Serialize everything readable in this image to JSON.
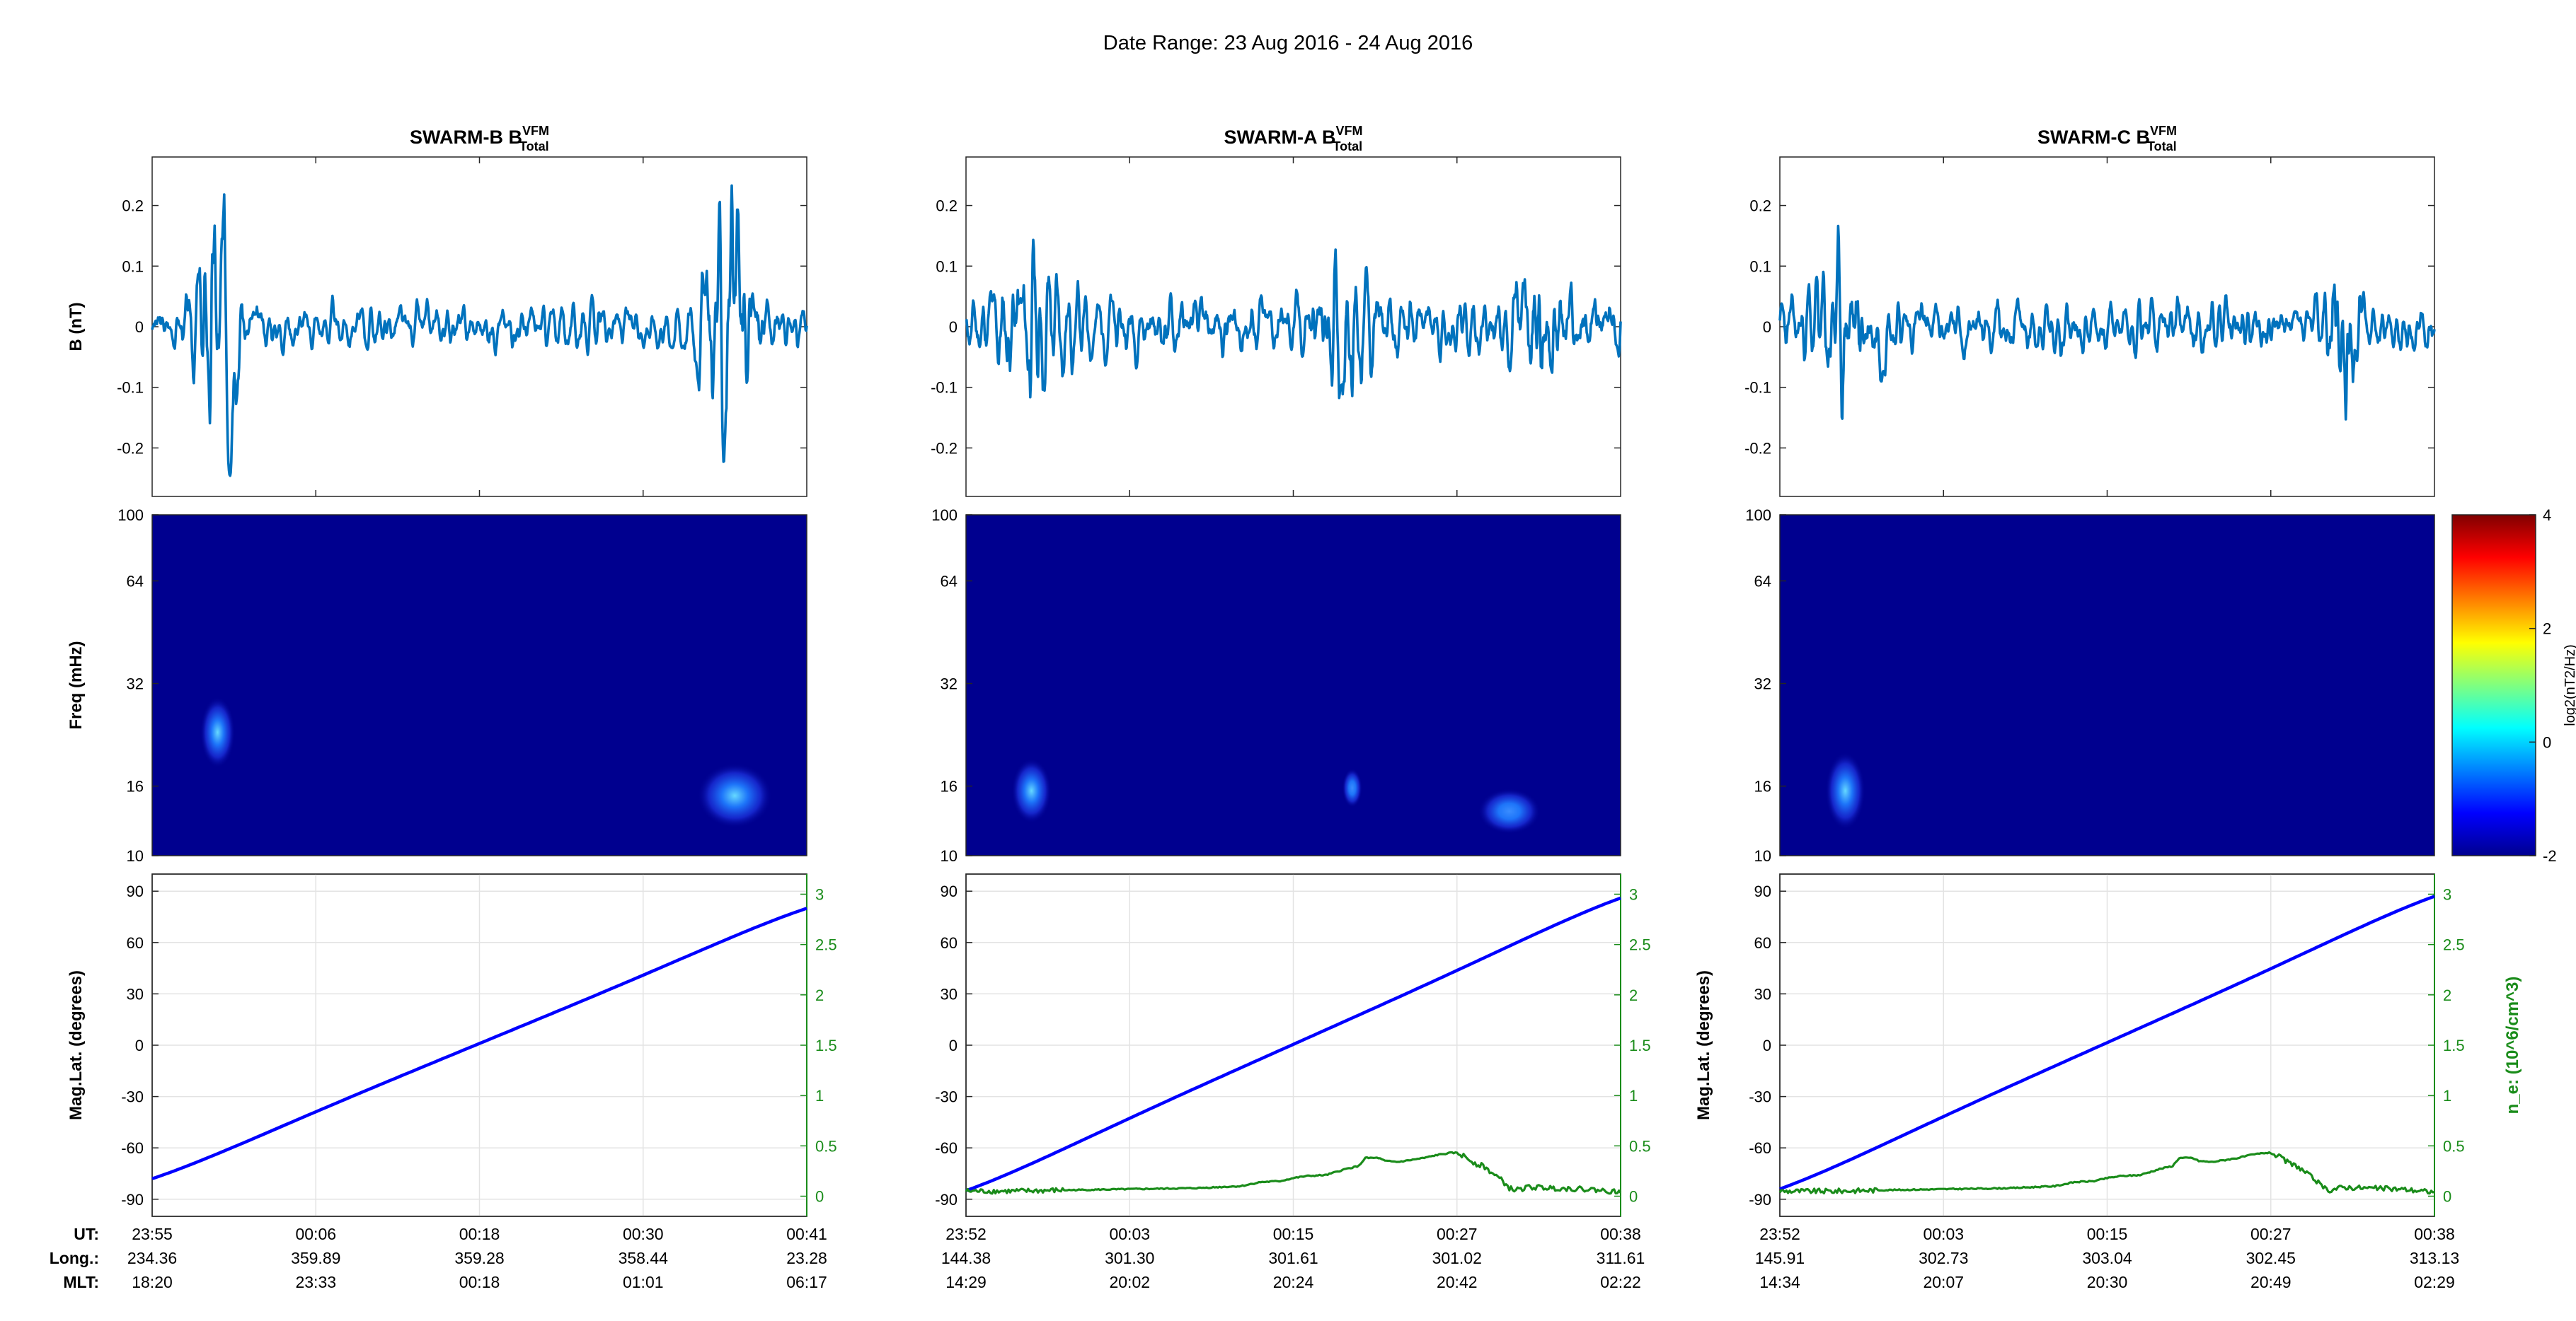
{
  "figure": {
    "title": "Date Range: 23 Aug 2016 - 24 Aug 2016"
  },
  "row_labels": {
    "footer_ut": "UT:",
    "footer_long": "Long.:",
    "footer_mlt": "MLT:"
  },
  "colors": {
    "b_trace": "#0072BD",
    "mlat": "#0000FF",
    "ne": "#1a8c1a",
    "spec_bg": "#00008f",
    "right_axis": "#1a8c1a"
  },
  "colorbar": {
    "label": "log2(nT2/Hz)",
    "ticks": [
      "-2",
      "0",
      "2",
      "4"
    ],
    "range": [
      -2,
      4
    ]
  },
  "chart_data": [
    {
      "type": "line",
      "panel": "SWARM-B",
      "title": "SWARM-B B",
      "title_sup": "VFM",
      "title_sub": "Total",
      "b_panel": {
        "ylabel": "B (nT)",
        "ylim": [
          -0.28,
          0.28
        ],
        "yticks": [
          0.2,
          0.1,
          0,
          -0.1,
          -0.2
        ],
        "ytick_labels": [
          "0.2",
          "0.1",
          "0",
          "-0.1",
          "-0.2"
        ],
        "bursts": [
          {
            "center": 0.1,
            "width": 0.03,
            "amp": 0.2
          },
          {
            "center": 0.88,
            "width": 0.04,
            "amp": 0.18
          }
        ],
        "base_amp": 0.035,
        "seed": 3
      },
      "spectrogram": {
        "ylabel": "Freq (mHz)",
        "ytick_labels": [
          "100",
          "64",
          "32",
          "16",
          "10"
        ],
        "yticks_mhz": [
          100,
          64,
          32,
          16,
          10
        ],
        "blobs": [
          {
            "x": 0.1,
            "f": 23,
            "sx": 0.014,
            "sf": 0.055,
            "level": 1.1
          },
          {
            "x": 0.89,
            "f": 15,
            "sx": 0.03,
            "sf": 0.05,
            "level": 1.0
          }
        ]
      },
      "orbit": {
        "ylabel": "Mag.Lat. (degrees)",
        "ylim_left": [
          -100,
          100
        ],
        "yticks_left": [
          90,
          60,
          30,
          0,
          -30,
          -60,
          -90
        ],
        "ylim_right": [
          -0.2,
          3.2
        ],
        "yticks_right": [
          "3",
          "2.5",
          "2",
          "1.5",
          "1",
          "0.5",
          "0"
        ],
        "yticks_right_values": [
          3,
          2.5,
          2,
          1.5,
          1,
          0.5,
          0
        ],
        "mlat_start": -78,
        "mlat_end": 80,
        "ne": null
      },
      "footer": {
        "ut": [
          "23:55",
          "00:06",
          "00:18",
          "00:30",
          "00:41"
        ],
        "long": [
          "234.36",
          "359.89",
          "359.28",
          "358.44",
          "23.28"
        ],
        "mlt": [
          "18:20",
          "23:33",
          "00:18",
          "01:01",
          "06:17"
        ]
      }
    },
    {
      "type": "line",
      "panel": "SWARM-A",
      "title": "SWARM-A B",
      "title_sup": "VFM",
      "title_sub": "Total",
      "b_panel": {
        "ylabel": "",
        "ylim": [
          -0.28,
          0.28
        ],
        "yticks": [
          0.2,
          0.1,
          0,
          -0.1,
          -0.2
        ],
        "ytick_labels": [
          "0.2",
          "0.1",
          "0",
          "-0.1",
          "-0.2"
        ],
        "bursts": [
          {
            "center": 0.1,
            "width": 0.05,
            "amp": 0.1
          },
          {
            "center": 0.58,
            "width": 0.04,
            "amp": 0.08
          },
          {
            "center": 0.88,
            "width": 0.04,
            "amp": 0.08
          }
        ],
        "base_amp": 0.05,
        "seed": 11
      },
      "spectrogram": {
        "ylabel": "",
        "ytick_labels": [
          "100",
          "64",
          "32",
          "16",
          "10"
        ],
        "yticks_mhz": [
          100,
          64,
          32,
          16,
          10
        ],
        "blobs": [
          {
            "x": 0.1,
            "f": 15.5,
            "sx": 0.016,
            "sf": 0.05,
            "level": 1.0
          },
          {
            "x": 0.59,
            "f": 15.8,
            "sx": 0.008,
            "sf": 0.03,
            "level": 0.55
          },
          {
            "x": 0.83,
            "f": 13.5,
            "sx": 0.025,
            "sf": 0.035,
            "level": 0.8
          }
        ]
      },
      "orbit": {
        "ylabel": "",
        "ylim_left": [
          -100,
          100
        ],
        "yticks_left": [
          90,
          60,
          30,
          0,
          -30,
          -60,
          -90
        ],
        "ylim_right": [
          -0.2,
          3.2
        ],
        "yticks_right": [
          "3",
          "2.5",
          "2",
          "1.5",
          "1",
          "0.5",
          "0"
        ],
        "yticks_right_values": [
          3,
          2.5,
          2,
          1.5,
          1,
          0.5,
          0
        ],
        "mlat_start": -85,
        "mlat_end": 86,
        "ne": {
          "x": [
            0.0,
            0.08,
            0.15,
            0.25,
            0.35,
            0.42,
            0.45,
            0.48,
            0.5,
            0.52,
            0.55,
            0.58,
            0.6,
            0.61,
            0.63,
            0.64,
            0.66,
            0.68,
            0.7,
            0.72,
            0.74,
            0.75,
            0.76,
            0.78,
            0.79,
            0.8,
            0.82,
            0.83,
            0.84,
            0.86,
            0.9,
            0.95,
            1.0
          ],
          "y": [
            0.05,
            0.05,
            0.06,
            0.07,
            0.08,
            0.1,
            0.14,
            0.15,
            0.18,
            0.2,
            0.21,
            0.27,
            0.3,
            0.38,
            0.38,
            0.35,
            0.34,
            0.36,
            0.38,
            0.41,
            0.43,
            0.43,
            0.4,
            0.32,
            0.3,
            0.25,
            0.15,
            0.08,
            0.06,
            0.09,
            0.08,
            0.07,
            0.04
          ]
        }
      },
      "footer": {
        "ut": [
          "23:52",
          "00:03",
          "00:15",
          "00:27",
          "00:38"
        ],
        "long": [
          "144.38",
          "301.30",
          "301.61",
          "301.02",
          "311.61"
        ],
        "mlt": [
          "14:29",
          "20:02",
          "20:24",
          "20:42",
          "02:22"
        ]
      }
    },
    {
      "type": "line",
      "panel": "SWARM-C",
      "title": "SWARM-C B",
      "title_sup": "VFM",
      "title_sub": "Total",
      "b_panel": {
        "ylabel": "",
        "ylim": [
          -0.28,
          0.28
        ],
        "yticks": [
          0.2,
          0.1,
          0,
          -0.1,
          -0.2
        ],
        "ytick_labels": [
          "0.2",
          "0.1",
          "0",
          "-0.1",
          "-0.2"
        ],
        "bursts": [
          {
            "center": 0.1,
            "width": 0.05,
            "amp": 0.1
          },
          {
            "center": 0.86,
            "width": 0.02,
            "amp": 0.15
          }
        ],
        "base_amp": 0.045,
        "seed": 23
      },
      "spectrogram": {
        "ylabel": "",
        "ytick_labels": [
          "100",
          "64",
          "32",
          "16",
          "10"
        ],
        "yticks_mhz": [
          100,
          64,
          32,
          16,
          10
        ],
        "blobs": [
          {
            "x": 0.1,
            "f": 15.5,
            "sx": 0.016,
            "sf": 0.06,
            "level": 1.1
          }
        ]
      },
      "orbit": {
        "ylabel": "Mag.Lat. (degrees)",
        "right_ylabel": "n_e: (10^6/cm^3)",
        "ylim_left": [
          -100,
          100
        ],
        "yticks_left": [
          90,
          60,
          30,
          0,
          -30,
          -60,
          -90
        ],
        "ylim_right": [
          -0.2,
          3.2
        ],
        "yticks_right": [
          "3",
          "2.5",
          "2",
          "1.5",
          "1",
          "0.5",
          "0"
        ],
        "yticks_right_values": [
          3,
          2.5,
          2,
          1.5,
          1,
          0.5,
          0
        ],
        "mlat_start": -84,
        "mlat_end": 87,
        "ne": {
          "x": [
            0.0,
            0.08,
            0.15,
            0.25,
            0.35,
            0.42,
            0.45,
            0.48,
            0.5,
            0.52,
            0.55,
            0.58,
            0.6,
            0.61,
            0.63,
            0.64,
            0.66,
            0.68,
            0.7,
            0.72,
            0.74,
            0.75,
            0.76,
            0.78,
            0.79,
            0.8,
            0.82,
            0.83,
            0.84,
            0.86,
            0.9,
            0.95,
            1.0
          ],
          "y": [
            0.05,
            0.05,
            0.06,
            0.07,
            0.08,
            0.1,
            0.14,
            0.15,
            0.18,
            0.2,
            0.21,
            0.27,
            0.3,
            0.38,
            0.38,
            0.35,
            0.34,
            0.36,
            0.38,
            0.41,
            0.43,
            0.43,
            0.4,
            0.32,
            0.3,
            0.25,
            0.15,
            0.08,
            0.06,
            0.09,
            0.08,
            0.07,
            0.04
          ]
        }
      },
      "footer": {
        "ut": [
          "23:52",
          "00:03",
          "00:15",
          "00:27",
          "00:38"
        ],
        "long": [
          "145.91",
          "302.73",
          "303.04",
          "302.45",
          "313.13"
        ],
        "mlt": [
          "14:34",
          "20:07",
          "20:30",
          "20:49",
          "02:29"
        ]
      }
    }
  ]
}
